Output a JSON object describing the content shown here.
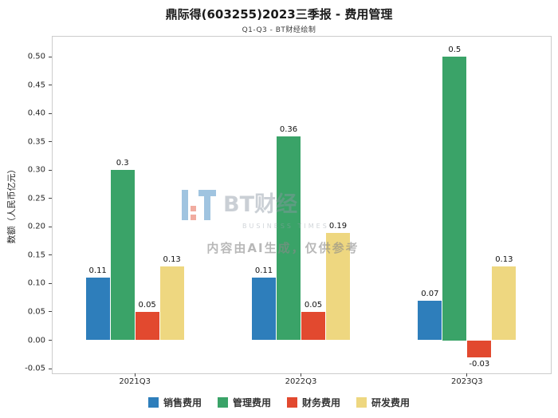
{
  "title": "鼎际得(603255)2023三季报 - 费用管理",
  "subtitle": "Q1-Q3 - BT财经绘制",
  "watermark": {
    "brand": "BT财经",
    "brand_sub": "BUSINESS TIMES",
    "notice": "内容由AI生成，仅供参考"
  },
  "chart_data": {
    "type": "bar",
    "title": "鼎际得(603255)2023三季报 - 费用管理",
    "subtitle": "Q1-Q3 - BT财经绘制",
    "xlabel": "",
    "ylabel": "数额（人民币亿元）",
    "categories": [
      "2021Q3",
      "2022Q3",
      "2023Q3"
    ],
    "series": [
      {
        "name": "销售费用",
        "color": "#2e7ebb",
        "values": [
          0.11,
          0.11,
          0.07
        ]
      },
      {
        "name": "管理费用",
        "color": "#3aa368",
        "values": [
          0.3,
          0.36,
          0.5
        ]
      },
      {
        "name": "财务费用",
        "color": "#e2492f",
        "values": [
          0.05,
          0.05,
          -0.03
        ]
      },
      {
        "name": "研发费用",
        "color": "#eed780",
        "values": [
          0.13,
          0.19,
          0.13
        ]
      }
    ],
    "ylim": [
      -0.057,
      0.537
    ],
    "yticks": [
      -0.05,
      0.0,
      0.05,
      0.1,
      0.15,
      0.2,
      0.25,
      0.3,
      0.35,
      0.4,
      0.45,
      0.5
    ],
    "grid": false,
    "legend_position": "bottom"
  }
}
